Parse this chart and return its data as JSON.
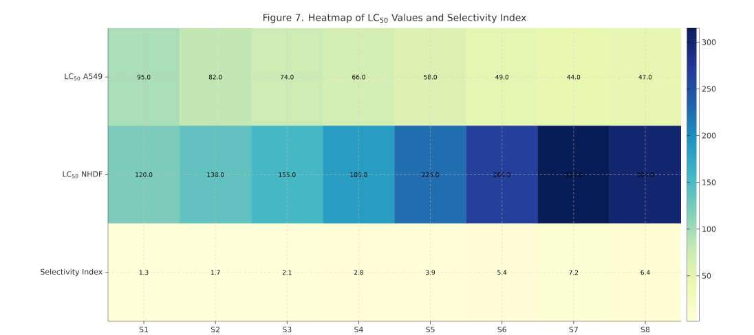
{
  "chart_data": {
    "type": "heatmap",
    "title": "Figure 7. Heatmap of LC$_{50}$ Values and Selectivity Index",
    "categories": [
      "S1",
      "S2",
      "S3",
      "S4",
      "S5",
      "S6",
      "S7",
      "S8"
    ],
    "y_categories": [
      "LC$_{50}$ A549",
      "LC$_{50}$ NHDF",
      "Selectivity Index"
    ],
    "cells": [
      [
        95.0,
        82.0,
        74.0,
        66.0,
        58.0,
        49.0,
        44.0,
        47.0
      ],
      [
        120.0,
        138.0,
        155.0,
        185.0,
        225.0,
        265.0,
        315.0,
        300.0
      ],
      [
        1.3,
        1.7,
        2.1,
        2.8,
        3.9,
        5.4,
        7.2,
        6.4
      ]
    ],
    "cell_labels": [
      [
        "95.0",
        "82.0",
        "74.0",
        "66.0",
        "58.0",
        "49.0",
        "44.0",
        "47.0"
      ],
      [
        "120.0",
        "138.0",
        "155.0",
        "185.0",
        "225.0",
        "265.0",
        "315.0",
        "300.0"
      ],
      [
        "1.3",
        "1.7",
        "2.1",
        "2.8",
        "3.9",
        "5.4",
        "7.2",
        "6.4"
      ]
    ],
    "clim": [
      1.3,
      315
    ],
    "cticks": [
      50,
      100,
      150,
      200,
      250,
      300
    ],
    "grid": true
  }
}
